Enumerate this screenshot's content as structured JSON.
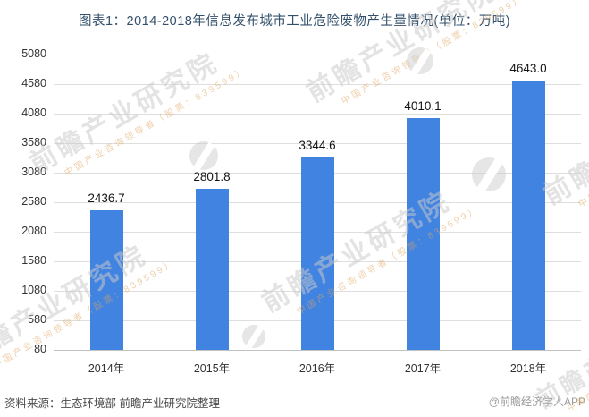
{
  "title": "图表1：2014-2018年信息发布城市工业危险废物产生量情况(单位：万吨)",
  "footer": {
    "source": "资料来源：生态环境部 前瞻产业研究院整理",
    "credit": "@前瞻经济学人APP"
  },
  "watermark": {
    "text": "前瞻产业研究院",
    "subtext": "中国产业咨询领导者（股票：839599）"
  },
  "colors": {
    "bar": "#4183e0",
    "title": "#33506b",
    "grid": "#dedede",
    "axis": "#c2c2c2",
    "tick": "#333333",
    "data_label": "#141414",
    "source": "#4a4a4a",
    "credit": "#9b9b9b"
  },
  "chart_data": {
    "type": "bar",
    "categories": [
      "2014年",
      "2015年",
      "2016年",
      "2017年",
      "2018年"
    ],
    "values": [
      2436.7,
      2801.8,
      3344.6,
      4010.1,
      4643.0
    ],
    "data_labels": [
      "2436.7",
      "2801.8",
      "3344.6",
      "4010.1",
      "4643.0"
    ],
    "title": "图表1：2014-2018年信息发布城市工业危险废物产生量情况(单位：万吨)",
    "xlabel": "",
    "ylabel": "",
    "ylim": [
      80,
      5080
    ],
    "ytick_step": 500,
    "yticks": [
      5080,
      4580,
      4080,
      3580,
      3080,
      2580,
      2080,
      1580,
      1080,
      580,
      80
    ],
    "grid": true,
    "legend": "none",
    "bar_color": "#4183e0"
  }
}
